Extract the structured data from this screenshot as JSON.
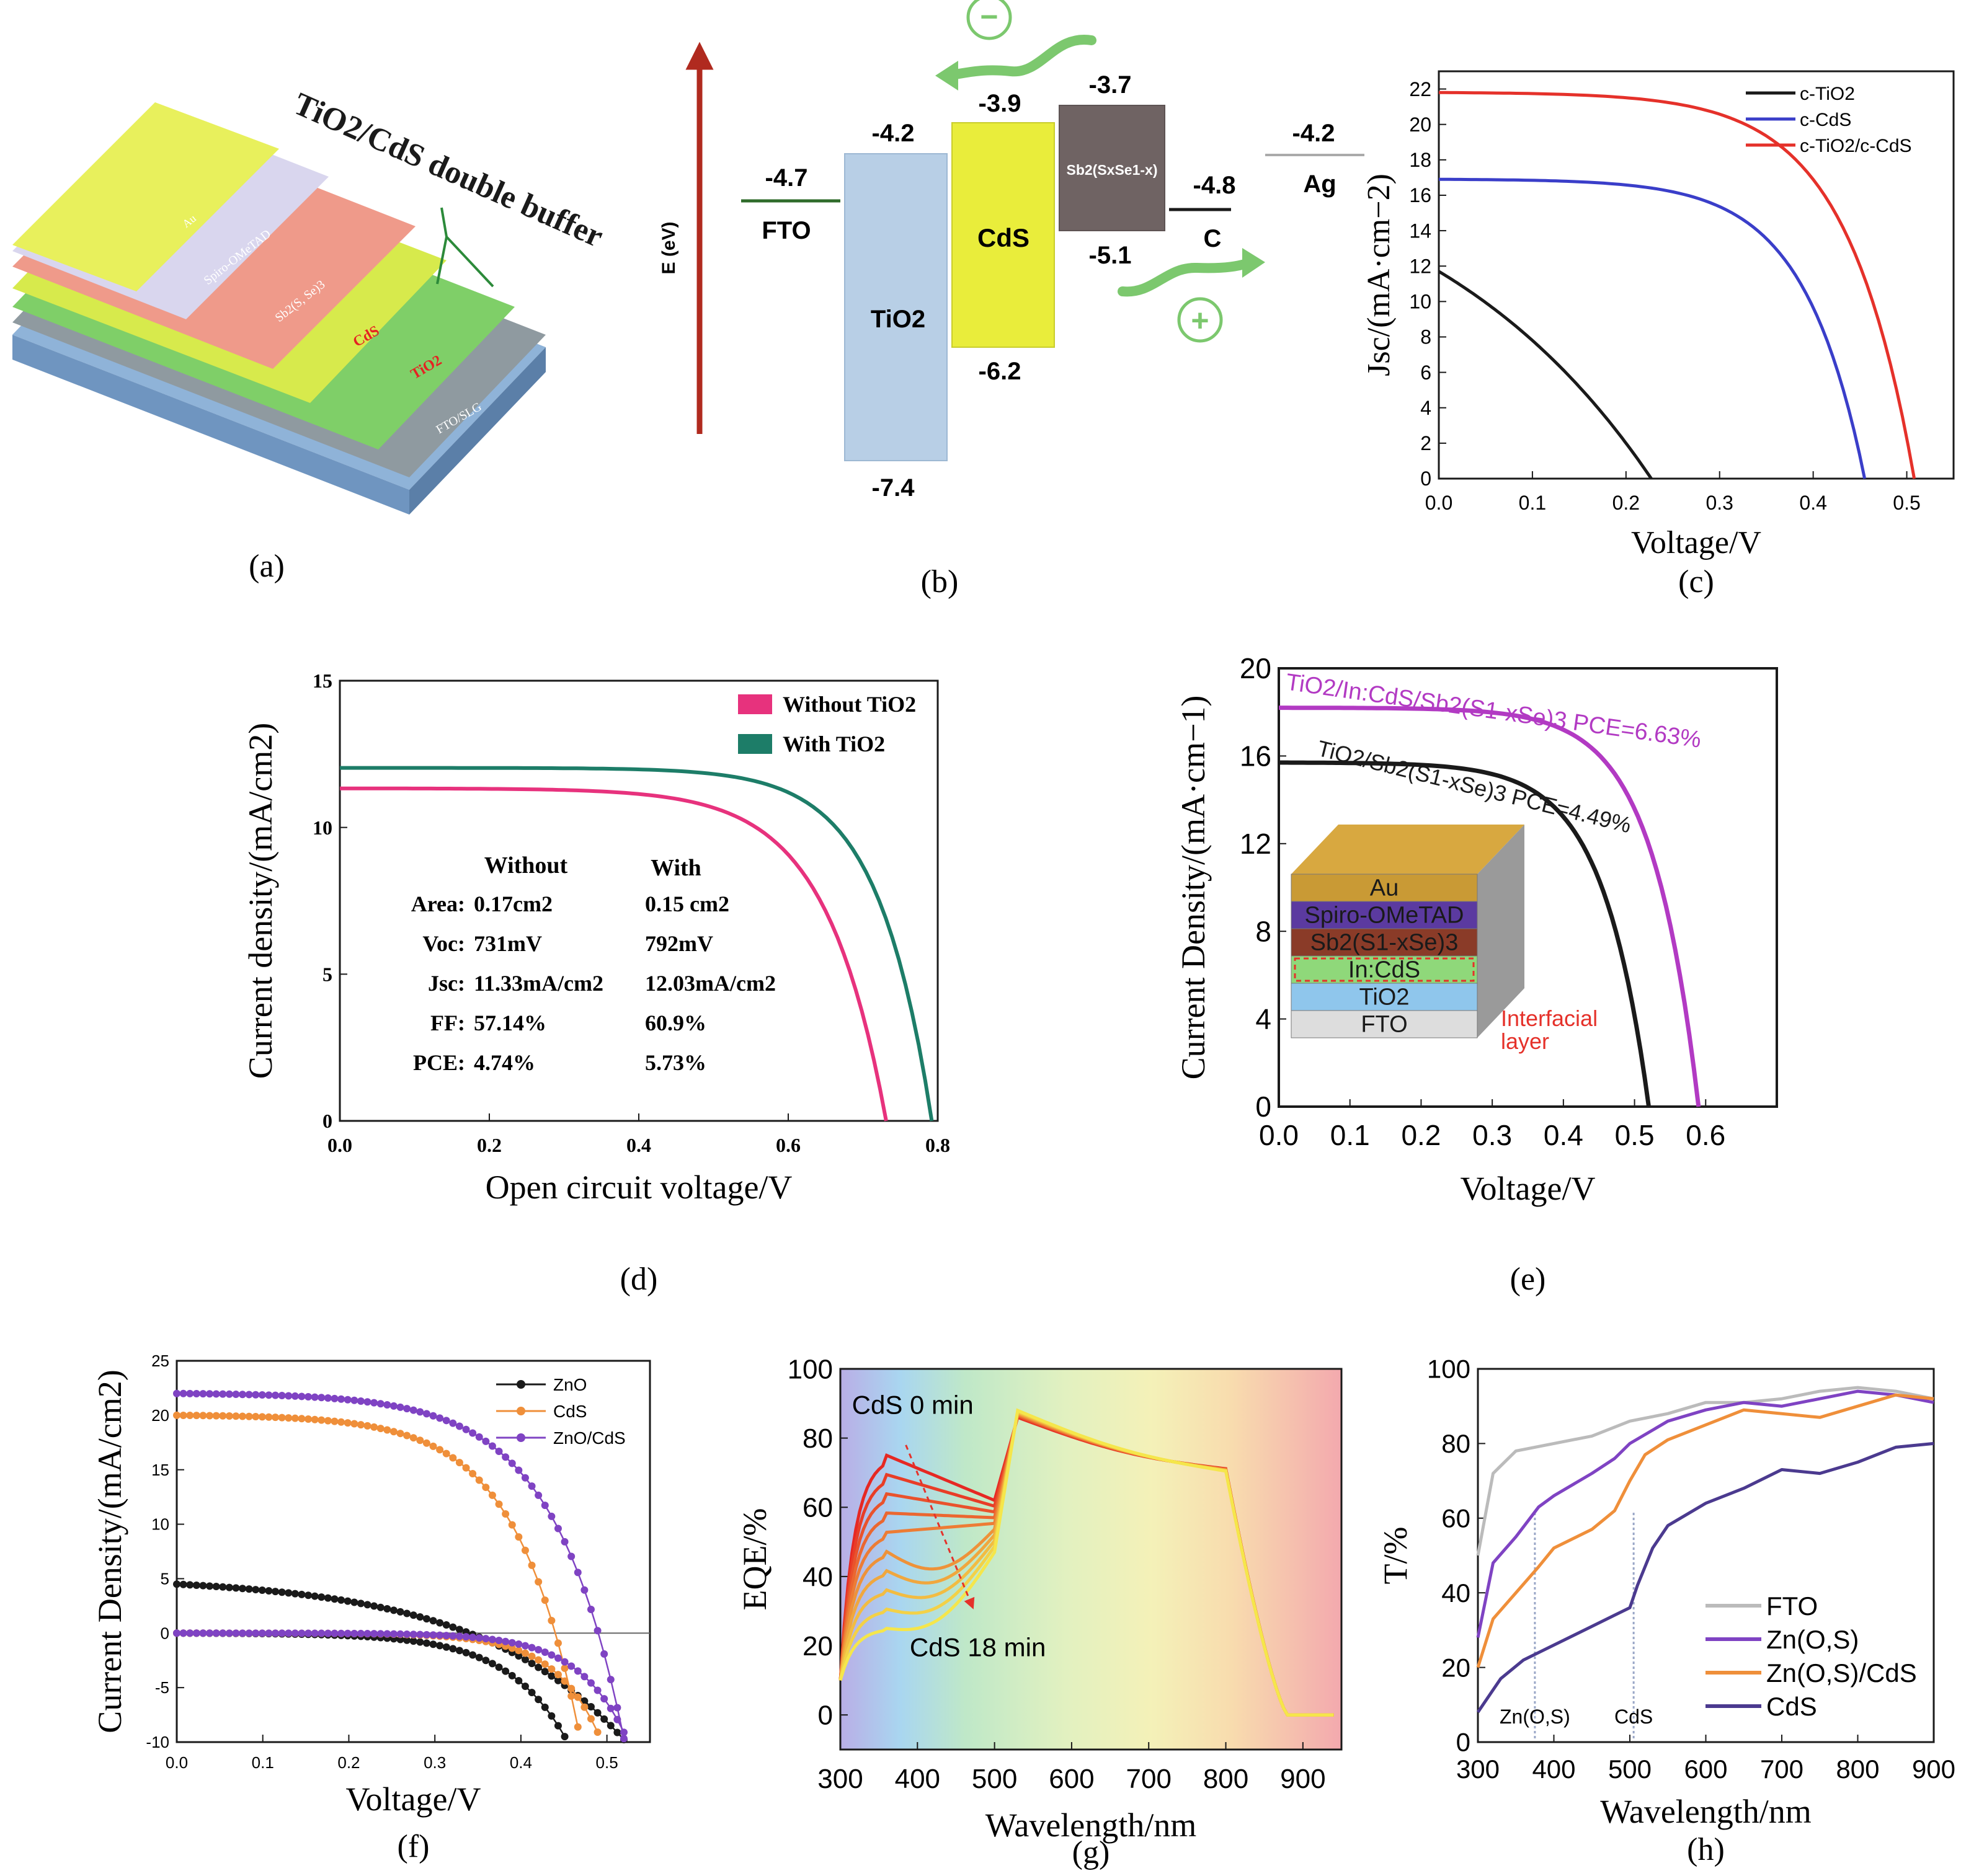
{
  "colors": {
    "red": "#e5312a",
    "blue": "#3a3ec9",
    "black": "#1a1a1a",
    "magenta": "#e7327d",
    "teal": "#1d7d68",
    "purple": "#b23ac3",
    "orange": "#ef8f3a",
    "violet": "#7f43c3",
    "grey": "#bbbbbb",
    "darkpurple": "#4b3a8f",
    "tio2": "#b8cfe6",
    "cds": "#e9ed3b",
    "sb": "#6f6363",
    "arrow_red": "#b02a1f",
    "arrow_green": "#7cc86e"
  },
  "panel_a": {
    "label": "(a)",
    "callout": "TiO2/CdS double buffer",
    "layers": [
      {
        "text": "Au"
      },
      {
        "text": "Spiro-OMeTAD"
      },
      {
        "text": "Sb2(S, Se)3"
      },
      {
        "text": "CdS"
      },
      {
        "text": "TiO2"
      },
      {
        "text": "FTO/SLG"
      }
    ]
  },
  "panel_b": {
    "label": "(b)",
    "axis_label": "E (eV)",
    "levels": {
      "fto": "-4.7",
      "fto_name": "FTO",
      "tio2_top": "-4.2",
      "tio2_bottom": "-7.4",
      "tio2_name": "TiO2",
      "cds_top": "-3.9",
      "cds_bottom": "-6.2",
      "cds_name": "CdS",
      "sb_top": "-3.7",
      "sb_bottom": "-5.1",
      "sb_name": "Sb2(SxSe1-x)",
      "c": "-4.8",
      "c_name": "C",
      "ag": "-4.2",
      "ag_name": "Ag"
    },
    "minus": "−",
    "plus": "+"
  },
  "chart_data": [
    {
      "id": "c",
      "type": "line",
      "label": "(c)",
      "xlabel": "Voltage/V",
      "ylabel": "Jsc/(mA·cm−2)",
      "xlim": [
        0,
        0.55
      ],
      "ylim": [
        0,
        23
      ],
      "xticks": [
        "0.0",
        "0.1",
        "0.2",
        "0.3",
        "0.4",
        "0.5"
      ],
      "yticks": [
        "0",
        "2",
        "4",
        "6",
        "8",
        "10",
        "12",
        "14",
        "16",
        "18",
        "20",
        "22"
      ],
      "legend_position": "top-right",
      "series": [
        {
          "name": "c-TiO2",
          "color_key": "black",
          "jsc": 11.7,
          "voc": 0.227,
          "k": 0.9
        },
        {
          "name": "c-CdS",
          "color_key": "blue",
          "jsc": 16.9,
          "voc": 0.455,
          "k": 7
        },
        {
          "name": "c-TiO2/c-CdS",
          "color_key": "red",
          "jsc": 21.8,
          "voc": 0.508,
          "k": 7
        }
      ]
    },
    {
      "id": "d",
      "type": "line",
      "label": "(d)",
      "xlabel": "Open circuit voltage/V",
      "ylabel": "Current density/(mA/cm2)",
      "xlim": [
        0,
        0.8
      ],
      "ylim": [
        0,
        15
      ],
      "xticks": [
        "0.0",
        "0.2",
        "0.4",
        "0.6",
        "0.8"
      ],
      "yticks": [
        "0",
        "5",
        "10",
        "15"
      ],
      "legend_position": "top-right",
      "series": [
        {
          "name": "Without TiO2",
          "color_key": "magenta",
          "jsc": 11.33,
          "voc": 0.731,
          "k": 9
        },
        {
          "name": "With TiO2",
          "color_key": "teal",
          "jsc": 12.03,
          "voc": 0.792,
          "k": 11
        }
      ],
      "table": {
        "headers": [
          "",
          "Without",
          "With"
        ],
        "rows": [
          [
            "Area:",
            "0.17cm2",
            "0.15 cm2"
          ],
          [
            "Voc:",
            "731mV",
            "792mV"
          ],
          [
            "Jsc:",
            "11.33mA/cm2",
            "12.03mA/cm2"
          ],
          [
            "FF:",
            "57.14%",
            "60.9%"
          ],
          [
            "PCE:",
            "4.74%",
            "5.73%"
          ]
        ]
      }
    },
    {
      "id": "e",
      "type": "line",
      "label": "(e)",
      "xlabel": "Voltage/V",
      "ylabel": "Current Density/(mA·cm−1)",
      "xlim": [
        0,
        0.7
      ],
      "ylim": [
        0,
        20
      ],
      "xticks": [
        "0.0",
        "0.1",
        "0.2",
        "0.3",
        "0.4",
        "0.5",
        "0.6"
      ],
      "yticks": [
        "0",
        "4",
        "8",
        "12",
        "16",
        "20"
      ],
      "series": [
        {
          "name": "TiO2/In:CdS/Sb2(S1-xSe)3 PCE=6.63%",
          "color_key": "purple",
          "jsc": 18.2,
          "voc": 0.59,
          "k": 9
        },
        {
          "name": "TiO2/Sb2(S1-xSe)3 PCE=4.49%",
          "color_key": "black",
          "jsc": 15.7,
          "voc": 0.52,
          "k": 8
        }
      ],
      "inset": {
        "layers": [
          "Au",
          "Spiro-OMeTAD",
          "Sb2(S1-xSe)3",
          "In:CdS",
          "TiO2",
          "FTO"
        ],
        "callout": [
          "Interfacial",
          "layer"
        ]
      }
    },
    {
      "id": "f",
      "type": "line",
      "label": "(f)",
      "xlabel": "Voltage/V",
      "ylabel": "Current Density/(mA/cm2)",
      "xlim": [
        0,
        0.55
      ],
      "ylim": [
        -10,
        25
      ],
      "xticks": [
        "0.0",
        "0.1",
        "0.2",
        "0.3",
        "0.4",
        "0.5"
      ],
      "yticks": [
        "-10",
        "-5",
        "0",
        "5",
        "10",
        "15",
        "20",
        "25"
      ],
      "legend_position": "top-right",
      "series": [
        {
          "name": "ZnO",
          "color_key": "black",
          "light": {
            "jsc": 4.5,
            "voc": 0.34,
            "k": 2
          },
          "dark": {
            "v0": 0.2,
            "b": 14.5
          }
        },
        {
          "name": "CdS",
          "color_key": "orange",
          "light": {
            "jsc": 20,
            "voc": 0.44,
            "k": 6
          },
          "dark": {
            "v0": 0.3,
            "b": 19
          }
        },
        {
          "name": "ZnO/CdS",
          "color_key": "violet",
          "light": {
            "jsc": 22,
            "voc": 0.49,
            "k": 6
          },
          "dark": {
            "v0": 0.32,
            "b": 18
          }
        }
      ]
    },
    {
      "id": "g",
      "type": "line",
      "label": "(g)",
      "xlabel": "Wavelength/nm",
      "ylabel": "EQE/%",
      "xlim": [
        300,
        950
      ],
      "ylim": [
        -10,
        100
      ],
      "xticks": [
        "300",
        "400",
        "500",
        "600",
        "700",
        "800",
        "900"
      ],
      "yticks": [
        "0",
        "20",
        "40",
        "60",
        "80",
        "100"
      ],
      "annotations": {
        "start": "CdS 0 min",
        "end": "CdS 18 min"
      },
      "curve_count": 10
    },
    {
      "id": "h",
      "type": "line",
      "label": "(h)",
      "xlabel": "Wavelength/nm",
      "ylabel": "T/%",
      "xlim": [
        300,
        900
      ],
      "ylim": [
        0,
        100
      ],
      "xticks": [
        "300",
        "400",
        "500",
        "600",
        "700",
        "800",
        "900"
      ],
      "yticks": [
        "0",
        "20",
        "40",
        "60",
        "80",
        "100"
      ],
      "legend_position": "bottom-right",
      "markers": [
        {
          "x": 375,
          "text": "Zn(O,S)"
        },
        {
          "x": 505,
          "text": "CdS"
        }
      ],
      "series": [
        {
          "name": "FTO",
          "color_key": "grey",
          "x": [
            300,
            320,
            350,
            400,
            450,
            500,
            550,
            600,
            650,
            700,
            750,
            800,
            850,
            900
          ],
          "y": [
            50,
            72,
            78,
            80,
            82,
            86,
            88,
            91,
            91,
            92,
            94,
            95,
            94,
            92
          ]
        },
        {
          "name": "Zn(O,S)",
          "color_key": "violet",
          "x": [
            300,
            320,
            350,
            380,
            400,
            450,
            480,
            500,
            550,
            600,
            650,
            700,
            750,
            800,
            850,
            900
          ],
          "y": [
            28,
            48,
            55,
            63,
            66,
            72,
            76,
            80,
            86,
            89,
            91,
            90,
            92,
            94,
            93,
            91
          ]
        },
        {
          "name": "Zn(O,S)/CdS",
          "color_key": "orange",
          "x": [
            300,
            320,
            350,
            380,
            400,
            450,
            480,
            500,
            520,
            550,
            600,
            650,
            700,
            750,
            800,
            850,
            900
          ],
          "y": [
            20,
            33,
            40,
            47,
            52,
            57,
            62,
            70,
            77,
            81,
            85,
            89,
            88,
            87,
            90,
            93,
            92
          ]
        },
        {
          "name": "CdS",
          "color_key": "darkpurple",
          "x": [
            300,
            330,
            360,
            400,
            450,
            480,
            500,
            510,
            530,
            550,
            600,
            650,
            700,
            750,
            800,
            850,
            900
          ],
          "y": [
            8,
            17,
            22,
            26,
            31,
            34,
            36,
            42,
            52,
            58,
            64,
            68,
            73,
            72,
            75,
            79,
            80
          ]
        }
      ]
    }
  ]
}
